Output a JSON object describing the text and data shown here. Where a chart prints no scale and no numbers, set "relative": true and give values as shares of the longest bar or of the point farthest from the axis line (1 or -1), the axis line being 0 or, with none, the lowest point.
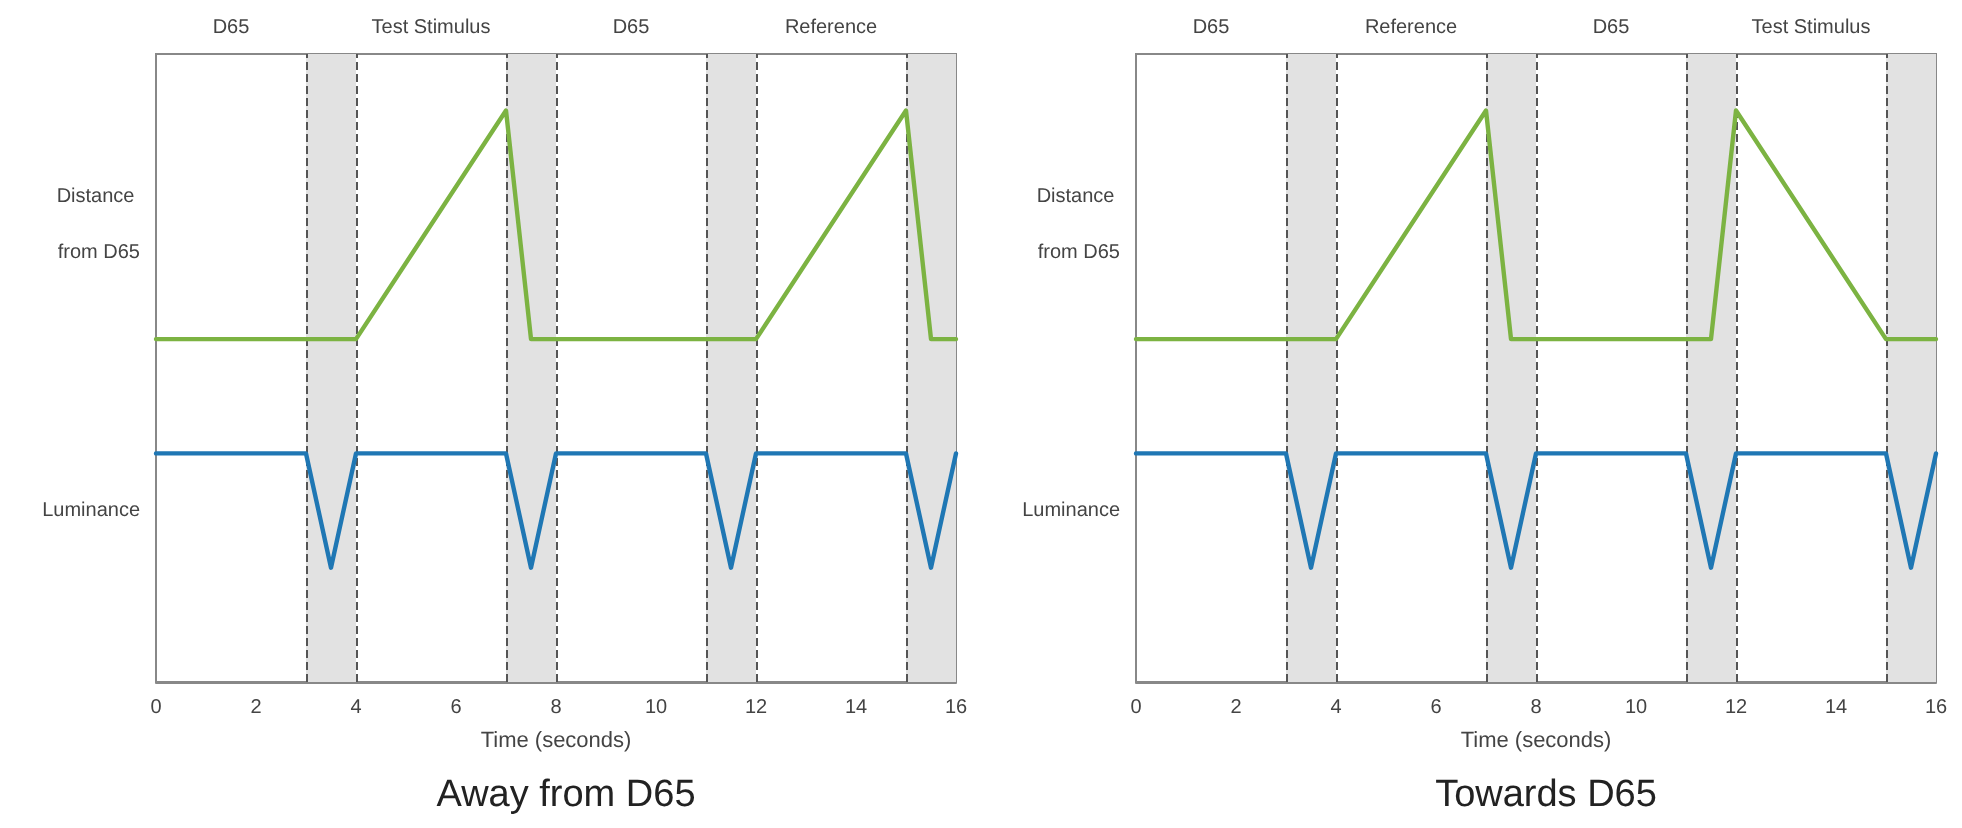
{
  "chart_data": [
    {
      "type": "line",
      "title": "Away from D65",
      "xlabel": "Time (seconds)",
      "relative": true,
      "marker": "none",
      "xlim": [
        0,
        16
      ],
      "xticks": [
        0,
        2,
        4,
        6,
        8,
        10,
        12,
        14,
        16
      ],
      "series": [
        {
          "name": "Distance from D65",
          "color": "#7cb342",
          "x": [
            0,
            4,
            7,
            7.5,
            12,
            15,
            15.5,
            16
          ],
          "values": [
            0.6,
            0.6,
            1,
            0.6,
            0.6,
            1,
            0.6,
            0.6
          ]
        },
        {
          "name": "Luminance",
          "color": "#1f77b4",
          "x": [
            0,
            3,
            3.5,
            4,
            7,
            7.5,
            8,
            11,
            11.5,
            12,
            15,
            15.5,
            16
          ],
          "values": [
            0.4,
            0.4,
            0.2,
            0.4,
            0.4,
            0.2,
            0.4,
            0.4,
            0.2,
            0.4,
            0.4,
            0.2,
            0.4
          ]
        }
      ],
      "bands": [
        {
          "axis": "x",
          "from": 3,
          "to": 4,
          "color": "#e2e2e2"
        },
        {
          "axis": "x",
          "from": 7,
          "to": 8,
          "color": "#e2e2e2"
        },
        {
          "axis": "x",
          "from": 11,
          "to": 12,
          "color": "#e2e2e2"
        },
        {
          "axis": "x",
          "from": 15,
          "to": 16,
          "color": "#e2e2e2"
        }
      ],
      "ref_lines": [
        {
          "axis": "x",
          "value": 3,
          "color": "#555555",
          "line_style": "dashed"
        },
        {
          "axis": "x",
          "value": 4,
          "color": "#555555",
          "line_style": "dashed"
        },
        {
          "axis": "x",
          "value": 7,
          "color": "#555555",
          "line_style": "dashed"
        },
        {
          "axis": "x",
          "value": 8,
          "color": "#555555",
          "line_style": "dashed"
        },
        {
          "axis": "x",
          "value": 11,
          "color": "#555555",
          "line_style": "dashed"
        },
        {
          "axis": "x",
          "value": 12,
          "color": "#555555",
          "line_style": "dashed"
        },
        {
          "axis": "x",
          "value": 15,
          "color": "#555555",
          "line_style": "dashed"
        }
      ],
      "annotations": [
        "D65",
        "Test Stimulus",
        "D65",
        "Reference"
      ]
    },
    {
      "type": "line",
      "title": "Towards D65",
      "xlabel": "Time (seconds)",
      "relative": true,
      "marker": "none",
      "xlim": [
        0,
        16
      ],
      "xticks": [
        0,
        2,
        4,
        6,
        8,
        10,
        12,
        14,
        16
      ],
      "series": [
        {
          "name": "Distance from D65",
          "color": "#7cb342",
          "x": [
            0,
            4,
            7,
            7.5,
            11.5,
            12,
            15,
            16
          ],
          "values": [
            0.6,
            0.6,
            1,
            0.6,
            0.6,
            1,
            0.6,
            0.6
          ]
        },
        {
          "name": "Luminance",
          "color": "#1f77b4",
          "x": [
            0,
            3,
            3.5,
            4,
            7,
            7.5,
            8,
            11,
            11.5,
            12,
            15,
            15.5,
            16
          ],
          "values": [
            0.4,
            0.4,
            0.2,
            0.4,
            0.4,
            0.2,
            0.4,
            0.4,
            0.2,
            0.4,
            0.4,
            0.2,
            0.4
          ]
        }
      ],
      "bands": [
        {
          "axis": "x",
          "from": 3,
          "to": 4,
          "color": "#e2e2e2"
        },
        {
          "axis": "x",
          "from": 7,
          "to": 8,
          "color": "#e2e2e2"
        },
        {
          "axis": "x",
          "from": 11,
          "to": 12,
          "color": "#e2e2e2"
        },
        {
          "axis": "x",
          "from": 15,
          "to": 16,
          "color": "#e2e2e2"
        }
      ],
      "ref_lines": [
        {
          "axis": "x",
          "value": 3,
          "color": "#555555",
          "line_style": "dashed"
        },
        {
          "axis": "x",
          "value": 4,
          "color": "#555555",
          "line_style": "dashed"
        },
        {
          "axis": "x",
          "value": 7,
          "color": "#555555",
          "line_style": "dashed"
        },
        {
          "axis": "x",
          "value": 8,
          "color": "#555555",
          "line_style": "dashed"
        },
        {
          "axis": "x",
          "value": 11,
          "color": "#555555",
          "line_style": "dashed"
        },
        {
          "axis": "x",
          "value": 12,
          "color": "#555555",
          "line_style": "dashed"
        },
        {
          "axis": "x",
          "value": 15,
          "color": "#555555",
          "line_style": "dashed"
        }
      ],
      "annotations": [
        "D65",
        "Reference",
        "D65",
        "Test Stimulus"
      ]
    }
  ]
}
